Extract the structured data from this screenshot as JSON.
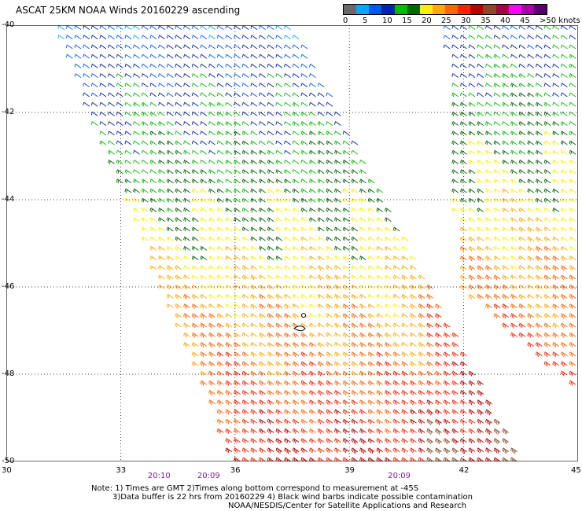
{
  "header": {
    "title": "ASCAT 25KM NOAA Winds 20160229 ascending"
  },
  "colorbar": {
    "colors": [
      "#6a6a6a",
      "#00aaff",
      "#0055ff",
      "#0022aa",
      "#00bb00",
      "#006600",
      "#ffee00",
      "#ffaa00",
      "#ff6600",
      "#ff2200",
      "#bb0000",
      "#8a4a2a",
      "#aa0044",
      "#ff00ff",
      "#aa00aa",
      "#550066"
    ],
    "labels": [
      {
        "text": "0",
        "pos": 0
      },
      {
        "text": "5",
        "pos": 5
      },
      {
        "text": "10",
        "pos": 10
      },
      {
        "text": "15",
        "pos": 15
      },
      {
        "text": "20",
        "pos": 20
      },
      {
        "text": "25",
        "pos": 25
      },
      {
        "text": "30",
        "pos": 30
      },
      {
        "text": "35",
        "pos": 35
      },
      {
        "text": "40",
        "pos": 40
      },
      {
        "text": "45",
        "pos": 45
      },
      {
        "text": ">50 knots",
        "pos": 50
      }
    ]
  },
  "axes": {
    "lon_ticks": [
      "30",
      "33",
      "36",
      "39",
      "42",
      "45"
    ],
    "lat_ticks": [
      "-40",
      "-42",
      "-44",
      "-46",
      "-48",
      "-50"
    ],
    "lon_range": [
      30,
      45
    ],
    "lat_range": [
      -50,
      -40
    ]
  },
  "times": [
    {
      "text": "20:10",
      "lon": 34.0
    },
    {
      "text": "20:09",
      "lon": 35.3
    },
    {
      "text": "20:09",
      "lon": 40.3
    }
  ],
  "notes": {
    "line1": "Note: 1) Times are GMT 2)Times along bottom correspond to measurement at -45S",
    "line2": "3)Data buffer is 22 hrs from 20160229 4) Black wind barbs indicate possible contamination",
    "line3": "NOAA/NESDIS/Center for Satellite Applications and Research"
  }
}
